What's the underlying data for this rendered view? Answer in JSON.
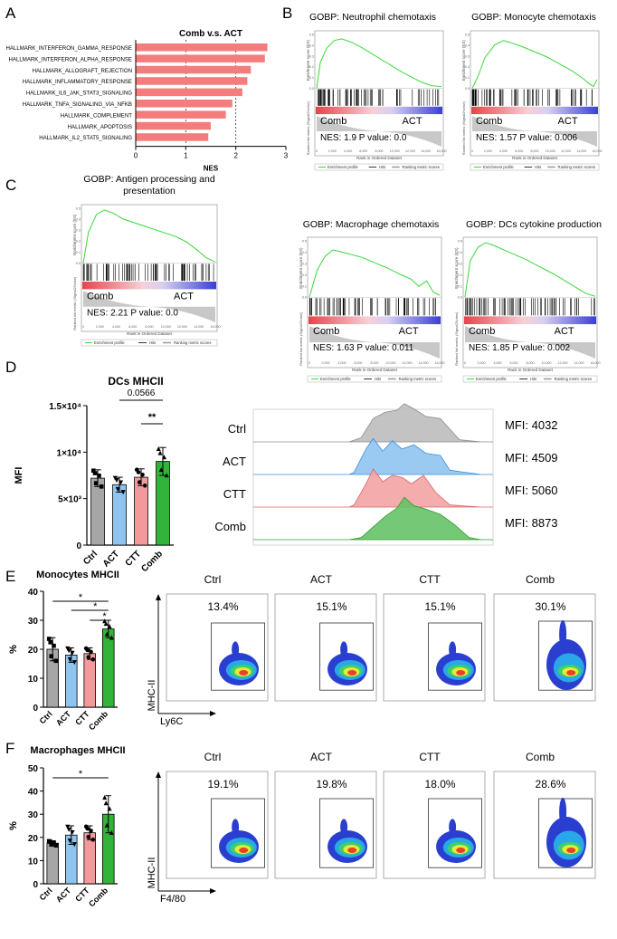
{
  "panel_labels": {
    "A": "A",
    "B": "B",
    "C": "C",
    "D": "D",
    "E": "E",
    "F": "F"
  },
  "colors": {
    "ctrl": "#a6a6a6",
    "act": "#8fc4ee",
    "ctt": "#f4999b",
    "comb": "#33b33a",
    "nes_bar": "#f47c7c",
    "gsea_line": "#3bd63b",
    "gsea_pos": "#e8434b",
    "gsea_neg": "#3a3fd6"
  },
  "chart_data": [
    {
      "id": "A",
      "type": "bar",
      "orientation": "horizontal",
      "title": "Comb v.s. ACT",
      "xlabel": "NES",
      "xlim": [
        0,
        3
      ],
      "xticks": [
        "0",
        "1",
        "2",
        "3"
      ],
      "categories": [
        "HALLMARK_INTERFERON_GAMMA_RESPONSE",
        "HALLMARK_INTERFERON_ALPHA_RESPONSE",
        "HALLMARK_ALLOGRAFT_REJECTION",
        "HALLMARK_INFLAMMATORY_RESPONSE",
        "HALLMARK_IL6_JAK_STAT3_SIGNALING",
        "HALLMARK_TNFA_SIGNALING_VIA_NFKB",
        "HALLMARK_COMPLEMENT",
        "HALLMARK_APOPTOSIS",
        "HALLMARK_IL2_STAT5_SIGNALING"
      ],
      "values": [
        2.63,
        2.58,
        2.3,
        2.23,
        2.13,
        1.93,
        1.8,
        1.5,
        1.45
      ]
    },
    {
      "id": "B1",
      "type": "line",
      "title": "GOBP: Neutrophil chemotaxis",
      "left_label": "Comb",
      "right_label": "ACT",
      "nes_text": "NES: 1.9 P value: 0.0",
      "y_axis_label": "Enrichment score (ES)",
      "xlabel": "Rank in Ordered Dataset",
      "x": [
        0,
        0.03,
        0.08,
        0.14,
        0.2,
        0.28,
        0.36,
        0.44,
        0.52,
        0.6,
        0.68,
        0.76,
        0.84,
        0.92,
        1
      ],
      "es": [
        0,
        0.3,
        0.46,
        0.55,
        0.57,
        0.53,
        0.47,
        0.4,
        0.33,
        0.26,
        0.19,
        0.13,
        0.07,
        0.03,
        0.02
      ]
    },
    {
      "id": "B2",
      "type": "line",
      "title": "GOBP: Monocyte chemotaxis",
      "left_label": "Comb",
      "right_label": "ACT",
      "nes_text": "NES: 1.57 P value: 0.006",
      "y_axis_label": "Enrichment score (ES)",
      "xlabel": "Rank in Ordered Dataset",
      "x": [
        0,
        0.05,
        0.1,
        0.18,
        0.25,
        0.32,
        0.4,
        0.5,
        0.6,
        0.7,
        0.8,
        0.88,
        0.94,
        0.97,
        1
      ],
      "es": [
        0,
        0.15,
        0.35,
        0.5,
        0.55,
        0.52,
        0.48,
        0.42,
        0.36,
        0.28,
        0.2,
        0.12,
        0.05,
        0.02,
        0.1
      ]
    },
    {
      "id": "C",
      "type": "line",
      "title": "GOBP: Antigen processing and presentation",
      "left_label": "Comb",
      "right_label": "ACT",
      "nes_text": "NES: 2.21 P value: 0.0",
      "y_axis_label": "Enrichment score (ES)",
      "xlabel": "Rank in Ordered Dataset",
      "x": [
        0,
        0.04,
        0.1,
        0.16,
        0.22,
        0.3,
        0.38,
        0.46,
        0.54,
        0.62,
        0.7,
        0.78,
        0.86,
        0.93,
        1
      ],
      "es": [
        0,
        0.35,
        0.55,
        0.6,
        0.57,
        0.5,
        0.46,
        0.42,
        0.38,
        0.34,
        0.3,
        0.24,
        0.15,
        0.06,
        0.01
      ]
    },
    {
      "id": "C2",
      "type": "line",
      "title": "GOBP: Macrophage chemotaxis",
      "left_label": "Comb",
      "right_label": "ACT",
      "nes_text": "NES: 1.63 P value: 0.011",
      "y_axis_label": "Enrichment score (ES)",
      "xlabel": "Rank in Ordered Dataset",
      "x": [
        0,
        0.06,
        0.12,
        0.18,
        0.24,
        0.32,
        0.4,
        0.5,
        0.6,
        0.7,
        0.78,
        0.84,
        0.9,
        0.95,
        1
      ],
      "es": [
        0,
        0.3,
        0.45,
        0.52,
        0.5,
        0.47,
        0.44,
        0.38,
        0.32,
        0.25,
        0.2,
        0.12,
        0.18,
        0.06,
        0.02
      ]
    },
    {
      "id": "C3",
      "type": "line",
      "title": "GOBP: DCs cytokine production",
      "left_label": "Comb",
      "right_label": "ACT",
      "nes_text": "NES: 1.85 P value: 0.002",
      "y_axis_label": "Enrichment score (ES)",
      "xlabel": "Rank in Ordered Dataset",
      "x": [
        0,
        0.04,
        0.1,
        0.16,
        0.22,
        0.3,
        0.38,
        0.46,
        0.54,
        0.62,
        0.7,
        0.78,
        0.86,
        0.93,
        1
      ],
      "es": [
        0,
        0.4,
        0.55,
        0.6,
        0.57,
        0.52,
        0.47,
        0.42,
        0.36,
        0.3,
        0.24,
        0.17,
        0.1,
        0.04,
        0.01
      ]
    },
    {
      "id": "D",
      "type": "bar",
      "title": "DCs MHCII",
      "ylabel": "MFI",
      "categories": [
        "Ctrl",
        "ACT",
        "CTT",
        "Comb"
      ],
      "values": [
        7200,
        6500,
        7300,
        9000
      ],
      "errors": [
        900,
        800,
        900,
        1500
      ],
      "ylim": [
        0,
        15000
      ],
      "yticks": [
        "0",
        "5×10³",
        "1×10⁴",
        "1.5×10⁴"
      ],
      "annotations": [
        {
          "text": "0.0566",
          "from": 1,
          "to": 3
        },
        {
          "text": "**",
          "from": 2,
          "to": 3
        }
      ]
    },
    {
      "id": "D_hist",
      "type": "area",
      "series": [
        "Ctrl",
        "ACT",
        "CTT",
        "Comb"
      ],
      "mfi_labels": [
        "MFI: 4032",
        "MFI: 4509",
        "MFI: 5060",
        "MFI: 8873"
      ]
    },
    {
      "id": "E",
      "type": "bar",
      "title": "Monocytes MHCII",
      "ylabel": "%",
      "categories": [
        "Ctrl",
        "ACT",
        "CTT",
        "Comb"
      ],
      "values": [
        20,
        18,
        18.5,
        27
      ],
      "errors": [
        4,
        2.5,
        2,
        3
      ],
      "ylim": [
        0,
        40
      ],
      "yticks": [
        "0",
        "10",
        "20",
        "30",
        "40"
      ],
      "annotations": [
        {
          "text": "*",
          "from": 0,
          "to": 3
        },
        {
          "text": "*",
          "from": 1,
          "to": 3
        },
        {
          "text": "*",
          "from": 2,
          "to": 3
        }
      ],
      "plots": [
        {
          "label": "Ctrl",
          "pct": "13.4%"
        },
        {
          "label": "ACT",
          "pct": "15.1%"
        },
        {
          "label": "CTT",
          "pct": "15.1%"
        },
        {
          "label": "Comb",
          "pct": "30.1%"
        }
      ],
      "axis_y": "MHC-II",
      "axis_x": "Ly6C"
    },
    {
      "id": "F",
      "type": "bar",
      "title": "Macrophages MHCII",
      "ylabel": "%",
      "categories": [
        "Ctrl",
        "ACT",
        "CTT",
        "Comb"
      ],
      "values": [
        17.5,
        21,
        22,
        30
      ],
      "errors": [
        1,
        4,
        3,
        8
      ],
      "ylim": [
        0,
        50
      ],
      "yticks": [
        "0",
        "10",
        "20",
        "30",
        "40",
        "50"
      ],
      "annotations": [
        {
          "text": "*",
          "from": 0,
          "to": 3
        }
      ],
      "plots": [
        {
          "label": "Ctrl",
          "pct": "19.1%"
        },
        {
          "label": "ACT",
          "pct": "19.8%"
        },
        {
          "label": "CTT",
          "pct": "18.0%"
        },
        {
          "label": "Comb",
          "pct": "28.6%"
        }
      ],
      "axis_y": "MHC-II",
      "axis_x": "F4/80"
    }
  ]
}
